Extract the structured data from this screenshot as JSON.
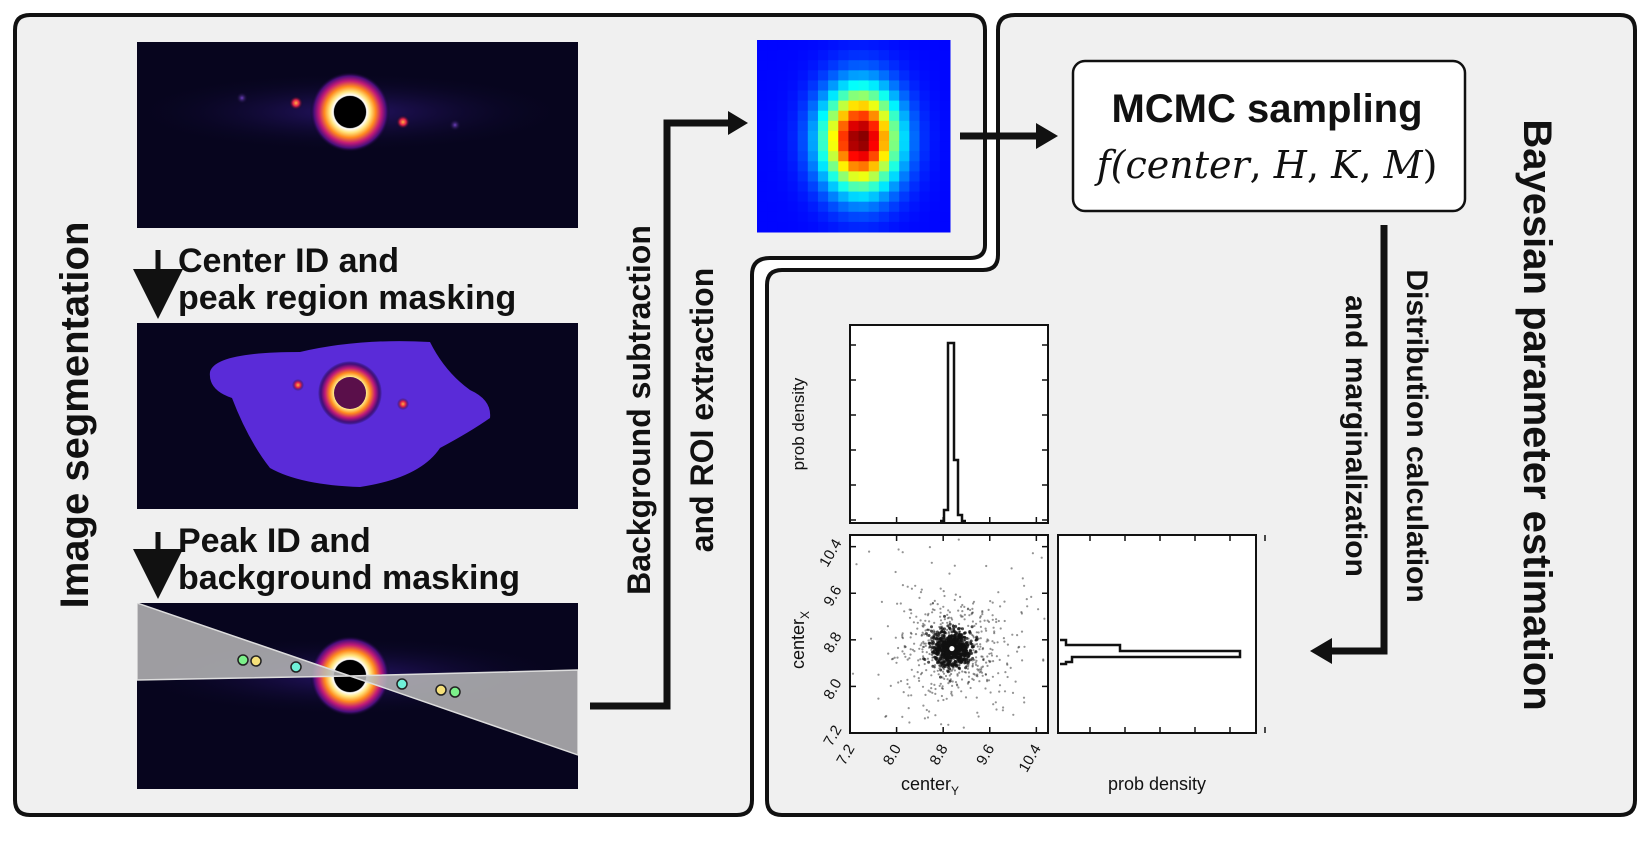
{
  "left_panel": {
    "title": "Image segmentation",
    "step1": {
      "line1": "Center ID and",
      "line2": "peak region masking"
    },
    "step2": {
      "line1": "Peak ID and",
      "line2": "background masking"
    }
  },
  "middle": {
    "arrow_label_line1": "Background subtraction",
    "arrow_label_line2": "and ROI extraction"
  },
  "mcmc_box": {
    "title": "MCMC sampling",
    "formula_open": "f(",
    "formula_args": [
      "center",
      "H",
      "K",
      "M"
    ],
    "formula_close": ")"
  },
  "right_panel": {
    "title": "Bayesian parameter estimation",
    "arrow_label_line1": "Distribution calculation",
    "arrow_label_line2": "and marginalization"
  },
  "corner_plot": {
    "top_hist_ylabel": "prob density",
    "scatter_ylabel_main": "center",
    "scatter_ylabel_sub": "X",
    "scatter_xlabel_main": "center",
    "scatter_xlabel_sub": "Y",
    "right_hist_xlabel": "prob density",
    "x_ticks": [
      "7.2",
      "8.0",
      "8.8",
      "9.6",
      "10.4"
    ],
    "y_ticks": [
      "7.2",
      "8.0",
      "8.8",
      "9.6",
      "10.4"
    ]
  },
  "colors": {
    "panel_fill": "#f0f0f0",
    "panel_border": "#111111",
    "detector_bg": "#07051e",
    "mask_purple": "#5a2bd8",
    "wedge_grey": "#a9a9a9"
  },
  "chart_data": [
    {
      "type": "bar",
      "title": "",
      "xlabel": "",
      "ylabel": "prob density",
      "x": [
        8.92,
        8.98,
        9.04,
        9.1,
        9.16,
        9.22
      ],
      "values": [
        0.02,
        0.05,
        1.0,
        0.36,
        0.04,
        0.01
      ]
    },
    {
      "type": "scatter",
      "xlabel": "centerY",
      "ylabel": "centerX",
      "xlim": [
        7.2,
        10.6
      ],
      "ylim": [
        7.2,
        10.6
      ],
      "center": [
        8.95,
        8.65
      ]
    },
    {
      "type": "bar",
      "xlabel": "prob density",
      "ylabel": "",
      "y": [
        8.45,
        8.55,
        8.65,
        8.75,
        8.85
      ],
      "values": [
        0.02,
        0.05,
        1.0,
        0.3,
        0.03
      ]
    }
  ]
}
